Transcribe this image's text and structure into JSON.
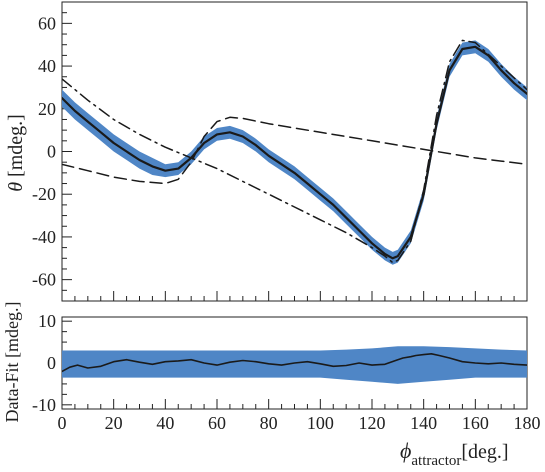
{
  "chart_data": [
    {
      "type": "line",
      "ylabel_symbol": "θ",
      "ylabel_unit": " [mdeg.]",
      "xlim": [
        0,
        180
      ],
      "ylim": [
        -70,
        70
      ],
      "yticks": [
        -60,
        -40,
        -20,
        0,
        20,
        40,
        60
      ],
      "grid": false,
      "band_color": "#4f86c6",
      "series": [
        {
          "style": "band",
          "x": [
            0,
            5,
            10,
            15,
            20,
            25,
            30,
            35,
            40,
            45,
            50,
            55,
            60,
            65,
            70,
            75,
            80,
            85,
            90,
            95,
            100,
            105,
            110,
            115,
            120,
            125,
            128,
            130,
            135,
            140,
            145,
            150,
            155,
            160,
            165,
            170,
            175,
            180
          ],
          "y": [
            25,
            19,
            14,
            9,
            4,
            0,
            -4,
            -7,
            -9,
            -8,
            -3,
            4,
            8,
            9,
            7,
            3,
            -2,
            -6,
            -10,
            -15,
            -20,
            -25,
            -31,
            -37,
            -43,
            -48,
            -50,
            -49,
            -40,
            -20,
            13,
            38,
            48,
            49,
            45,
            38,
            32,
            27
          ],
          "y_low": [
            21,
            15,
            10,
            5,
            0,
            -4,
            -8,
            -11,
            -12,
            -11,
            -6,
            1,
            5,
            6,
            4,
            0,
            -5,
            -9,
            -13,
            -18,
            -23,
            -28,
            -34,
            -40,
            -46,
            -51,
            -53,
            -52,
            -43,
            -23,
            10,
            35,
            45,
            46,
            42,
            35,
            29,
            24
          ],
          "y_high": [
            29,
            23,
            18,
            13,
            8,
            4,
            0,
            -3,
            -6,
            -5,
            0,
            7,
            11,
            12,
            10,
            6,
            1,
            -3,
            -7,
            -12,
            -17,
            -22,
            -28,
            -34,
            -40,
            -45,
            -47,
            -46,
            -37,
            -17,
            16,
            41,
            51,
            52,
            48,
            41,
            35,
            30
          ]
        },
        {
          "style": "solid",
          "x": [
            0,
            5,
            10,
            15,
            20,
            25,
            30,
            35,
            40,
            45,
            50,
            55,
            60,
            65,
            70,
            75,
            80,
            85,
            90,
            95,
            100,
            105,
            110,
            115,
            120,
            125,
            128,
            130,
            135,
            140,
            145,
            150,
            155,
            160,
            165,
            170,
            175,
            180
          ],
          "y": [
            25,
            19,
            14,
            9,
            4,
            0,
            -4,
            -7,
            -9,
            -8,
            -3,
            4,
            8,
            9,
            7,
            3,
            -2,
            -6,
            -10,
            -15,
            -20,
            -25,
            -31,
            -37,
            -43,
            -48,
            -50,
            -49,
            -40,
            -20,
            13,
            38,
            48,
            49,
            45,
            38,
            32,
            27
          ]
        },
        {
          "style": "dashdot",
          "x": [
            0,
            10,
            20,
            30,
            40,
            50,
            60,
            70,
            80,
            90,
            100,
            110,
            120,
            125,
            128,
            130,
            135,
            140,
            145,
            150,
            155,
            160,
            170,
            180
          ],
          "y": [
            34,
            24,
            15,
            8,
            2,
            -3,
            -8,
            -14,
            -20,
            -26,
            -32,
            -38,
            -45,
            -49,
            -52,
            -51,
            -42,
            -18,
            17,
            42,
            52,
            51,
            40,
            29
          ]
        },
        {
          "style": "dashed",
          "x": [
            0,
            10,
            20,
            30,
            40,
            45,
            50,
            55,
            60,
            65,
            70,
            80,
            90,
            100,
            110,
            120,
            130,
            140,
            150,
            160,
            170,
            180
          ],
          "y": [
            -6,
            -9,
            -12,
            -14,
            -15,
            -13,
            -5,
            7,
            14,
            16,
            15.5,
            13,
            11,
            9,
            7,
            5,
            3,
            1,
            -1,
            -3,
            -4.5,
            -6
          ]
        }
      ]
    },
    {
      "type": "line",
      "ylabel": "Data-Fit [mdeg.]",
      "xlabel_symbol": "ϕ",
      "xlabel_sub": "attractor",
      "xlabel_unit": "[deg.]",
      "xlim": [
        0,
        180
      ],
      "ylim": [
        -11,
        11
      ],
      "yticks": [
        -10,
        0,
        10
      ],
      "xticks": [
        0,
        20,
        40,
        60,
        80,
        100,
        120,
        140,
        160,
        180
      ],
      "grid": false,
      "band_color": "#4f86c6",
      "series": [
        {
          "style": "band",
          "x": [
            0,
            20,
            40,
            60,
            80,
            100,
            110,
            120,
            130,
            140,
            150,
            160,
            170,
            180
          ],
          "y_low": [
            -3.5,
            -3.5,
            -3.5,
            -3.5,
            -3.5,
            -3.5,
            -4,
            -4.5,
            -5,
            -4.5,
            -4,
            -3.5,
            -3.5,
            -3.5
          ],
          "y_high": [
            3,
            3,
            3,
            3,
            3,
            3,
            3.2,
            3.5,
            4,
            4,
            3.8,
            3.5,
            3.2,
            3
          ]
        },
        {
          "style": "solid",
          "x": [
            0,
            3,
            6,
            10,
            15,
            20,
            25,
            30,
            35,
            40,
            45,
            50,
            55,
            60,
            65,
            70,
            75,
            80,
            85,
            90,
            95,
            100,
            105,
            110,
            115,
            120,
            125,
            130,
            132,
            135,
            137,
            140,
            143,
            146,
            150,
            155,
            160,
            165,
            170,
            175,
            180
          ],
          "y": [
            -2,
            -1,
            -0.5,
            -1.2,
            -0.8,
            0.3,
            0.8,
            0.2,
            -0.3,
            0.3,
            0.5,
            0.8,
            0,
            -0.5,
            0.2,
            0.6,
            0.3,
            -0.2,
            -0.5,
            0,
            0.3,
            -0.2,
            -0.8,
            -0.6,
            0,
            -0.5,
            -0.3,
            0.8,
            1.2,
            1.5,
            1.8,
            2,
            2.2,
            1.8,
            1.2,
            0.3,
            0,
            -0.2,
            0,
            -0.3,
            -0.5
          ]
        }
      ]
    }
  ]
}
